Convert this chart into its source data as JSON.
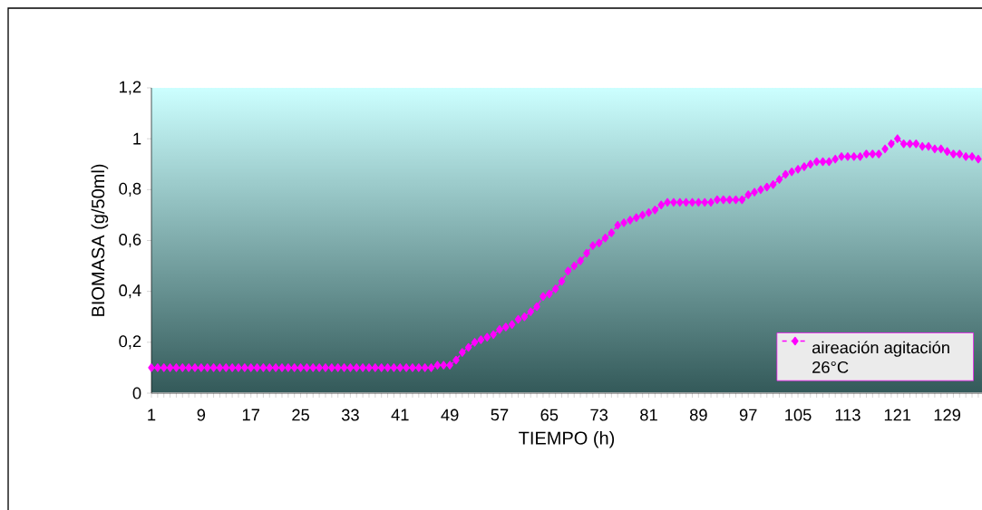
{
  "chart_data": {
    "type": "line",
    "xlabel": "TIEMPO (h)",
    "ylabel": "BIOMASA (g/50ml)",
    "categories": [
      "1",
      null,
      null,
      null,
      null,
      null,
      null,
      null,
      "9",
      null,
      null,
      null,
      null,
      null,
      null,
      null,
      "17",
      null,
      null,
      null,
      null,
      null,
      null,
      null,
      "25",
      null,
      null,
      null,
      null,
      null,
      null,
      null,
      "33",
      null,
      null,
      null,
      null,
      null,
      null,
      null,
      "41",
      null,
      null,
      null,
      null,
      null,
      null,
      null,
      "49",
      null,
      null,
      null,
      null,
      null,
      null,
      null,
      "57",
      null,
      null,
      null,
      null,
      null,
      null,
      null,
      "65",
      null,
      null,
      null,
      null,
      null,
      null,
      null,
      "73",
      null,
      null,
      null,
      null,
      null,
      null,
      null,
      "81",
      null,
      null,
      null,
      null,
      null,
      null,
      null,
      "89",
      null,
      null,
      null,
      null,
      null,
      null,
      null,
      "97",
      null,
      null,
      null,
      null,
      null,
      null,
      null,
      "105",
      null,
      null,
      null,
      null,
      null,
      null,
      null,
      "113",
      null,
      null,
      null,
      null,
      null,
      null,
      null,
      "121",
      null,
      null,
      null,
      null,
      null,
      null,
      null,
      "129",
      null,
      null,
      null,
      null,
      null
    ],
    "series": [
      {
        "name": "aireación agitación 26°C",
        "color": "#ff00ff",
        "values": [
          0.1,
          0.1,
          0.1,
          0.1,
          0.1,
          0.1,
          0.1,
          0.1,
          0.1,
          0.1,
          0.1,
          0.1,
          0.1,
          0.1,
          0.1,
          0.1,
          0.1,
          0.1,
          0.1,
          0.1,
          0.1,
          0.1,
          0.1,
          0.1,
          0.1,
          0.1,
          0.1,
          0.1,
          0.1,
          0.1,
          0.1,
          0.1,
          0.1,
          0.1,
          0.1,
          0.1,
          0.1,
          0.1,
          0.1,
          0.1,
          0.1,
          0.1,
          0.1,
          0.1,
          0.1,
          0.1,
          0.11,
          0.11,
          0.11,
          0.13,
          0.16,
          0.18,
          0.2,
          0.21,
          0.22,
          0.23,
          0.25,
          0.26,
          0.27,
          0.29,
          0.3,
          0.32,
          0.34,
          0.38,
          0.39,
          0.41,
          0.44,
          0.48,
          0.5,
          0.52,
          0.55,
          0.58,
          0.59,
          0.61,
          0.63,
          0.66,
          0.67,
          0.68,
          0.69,
          0.7,
          0.71,
          0.72,
          0.74,
          0.75,
          0.75,
          0.75,
          0.75,
          0.75,
          0.75,
          0.75,
          0.75,
          0.76,
          0.76,
          0.76,
          0.76,
          0.76,
          0.78,
          0.79,
          0.8,
          0.81,
          0.82,
          0.84,
          0.86,
          0.87,
          0.88,
          0.89,
          0.9,
          0.91,
          0.91,
          0.91,
          0.92,
          0.93,
          0.93,
          0.93,
          0.93,
          0.94,
          0.94,
          0.94,
          0.96,
          0.98,
          1.0,
          0.98,
          0.98,
          0.98,
          0.97,
          0.97,
          0.96,
          0.96,
          0.95,
          0.94,
          0.94,
          0.93,
          0.93,
          0.92
        ]
      }
    ],
    "ylim": [
      0,
      1.2
    ],
    "yticks": [
      0,
      {
        "value": 0.2,
        "label": "0,2"
      },
      {
        "value": 0.4,
        "label": "0,4"
      },
      {
        "value": 0.6,
        "label": "0,6"
      },
      {
        "value": 0.8,
        "label": "0,8"
      },
      1,
      {
        "value": 1.2,
        "label": "1,2"
      }
    ],
    "grid": false,
    "legend": "bottom right",
    "marker": "diamond",
    "line_style": "dashed"
  }
}
